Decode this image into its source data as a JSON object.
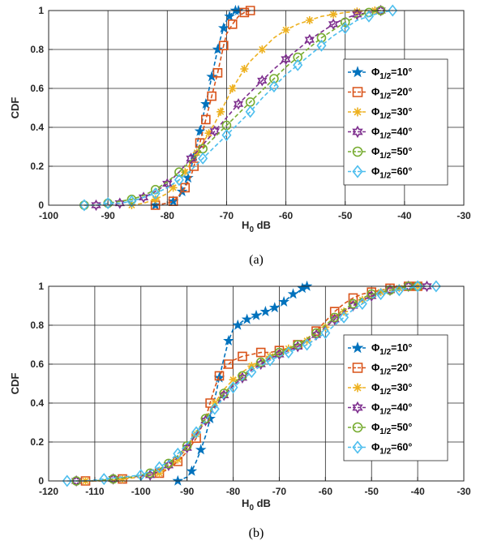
{
  "panels": [
    {
      "caption": "(a)",
      "chart_data": {
        "type": "line",
        "xlabel": "H_0 dB",
        "ylabel": "CDF",
        "xlim": [
          -100,
          -30
        ],
        "ylim": [
          0,
          1
        ],
        "xticks": [
          -100,
          -90,
          -80,
          -70,
          -60,
          -50,
          -40,
          -30
        ],
        "yticks": [
          0,
          0.2,
          0.4,
          0.6,
          0.8,
          1
        ],
        "grid": true,
        "legend_position": "right",
        "series": [
          {
            "name": "Φ1/2=10°",
            "color": "#0072BD",
            "marker": "star",
            "x": [
              -82,
              -80,
              -79,
              -78,
              -77.5,
              -77,
              -76.5,
              -76,
              -75.5,
              -75,
              -74.5,
              -74,
              -73.5,
              -73,
              -72.5,
              -72,
              -71.5,
              -71,
              -70.5,
              -70,
              -69.5,
              -69,
              -68.5,
              -68
            ],
            "y": [
              0,
              0.01,
              0.02,
              0.04,
              0.07,
              0.1,
              0.14,
              0.19,
              0.25,
              0.31,
              0.38,
              0.45,
              0.52,
              0.59,
              0.66,
              0.73,
              0.8,
              0.86,
              0.91,
              0.95,
              0.97,
              0.99,
              1,
              1
            ]
          },
          {
            "name": "Φ1/2=20°",
            "color": "#D95319",
            "marker": "square",
            "x": [
              -82,
              -80,
              -79,
              -78,
              -77,
              -76,
              -75.5,
              -75,
              -74.5,
              -74,
              -73.5,
              -73,
              -72.5,
              -72,
              -71.5,
              -71,
              -70.5,
              -70,
              -69,
              -68,
              -67,
              -66
            ],
            "y": [
              0,
              0.01,
              0.02,
              0.05,
              0.09,
              0.15,
              0.2,
              0.26,
              0.32,
              0.38,
              0.44,
              0.5,
              0.56,
              0.62,
              0.68,
              0.75,
              0.82,
              0.88,
              0.93,
              0.97,
              0.99,
              1
            ]
          },
          {
            "name": "Φ1/2=30°",
            "color": "#EDB120",
            "marker": "asterisk",
            "x": [
              -86,
              -84,
              -82,
              -80,
              -79,
              -78,
              -77,
              -76,
              -75,
              -74,
              -73,
              -72,
              -71,
              -70,
              -69,
              -68,
              -67,
              -66,
              -64,
              -62,
              -60,
              -58,
              -56,
              -54,
              -52,
              -50,
              -48,
              -46,
              -45
            ],
            "y": [
              0,
              0.01,
              0.03,
              0.06,
              0.09,
              0.13,
              0.17,
              0.22,
              0.27,
              0.32,
              0.37,
              0.42,
              0.48,
              0.54,
              0.6,
              0.65,
              0.7,
              0.74,
              0.8,
              0.86,
              0.9,
              0.93,
              0.95,
              0.97,
              0.98,
              0.99,
              0.995,
              1,
              1
            ]
          },
          {
            "name": "Φ1/2=40°",
            "color": "#7E2F8E",
            "marker": "hexagram",
            "x": [
              -92,
              -90,
              -88,
              -86,
              -84,
              -82,
              -80,
              -78,
              -76,
              -74,
              -72,
              -70,
              -68,
              -66,
              -64,
              -62,
              -60,
              -58,
              -56,
              -54,
              -52,
              -50,
              -48,
              -46,
              -44
            ],
            "y": [
              0,
              0,
              0.01,
              0.02,
              0.04,
              0.07,
              0.11,
              0.17,
              0.24,
              0.31,
              0.38,
              0.45,
              0.52,
              0.58,
              0.64,
              0.7,
              0.75,
              0.8,
              0.85,
              0.89,
              0.93,
              0.96,
              0.98,
              0.99,
              1
            ]
          },
          {
            "name": "Φ1/2=50°",
            "color": "#77AC30",
            "marker": "circle",
            "x": [
              -94,
              -92,
              -90,
              -88,
              -86,
              -84,
              -82,
              -80,
              -78,
              -76,
              -74,
              -72,
              -70,
              -68,
              -66,
              -64,
              -62,
              -60,
              -58,
              -56,
              -54,
              -52,
              -50,
              -48,
              -46,
              -44
            ],
            "y": [
              0,
              0,
              0.01,
              0.02,
              0.03,
              0.05,
              0.08,
              0.12,
              0.17,
              0.23,
              0.29,
              0.35,
              0.41,
              0.47,
              0.53,
              0.59,
              0.65,
              0.71,
              0.76,
              0.81,
              0.86,
              0.9,
              0.94,
              0.97,
              0.99,
              1
            ]
          },
          {
            "name": "Φ1/2=60°",
            "color": "#4DBEEE",
            "marker": "diamond",
            "x": [
              -94,
              -92,
              -90,
              -88,
              -86,
              -84,
              -82,
              -80,
              -78,
              -76,
              -74,
              -72,
              -70,
              -68,
              -66,
              -64,
              -62,
              -60,
              -58,
              -56,
              -54,
              -52,
              -50,
              -48,
              -46,
              -44,
              -42
            ],
            "y": [
              0,
              0,
              0.01,
              0.01,
              0.02,
              0.04,
              0.06,
              0.09,
              0.13,
              0.18,
              0.24,
              0.3,
              0.36,
              0.42,
              0.48,
              0.55,
              0.61,
              0.67,
              0.72,
              0.77,
              0.82,
              0.87,
              0.91,
              0.95,
              0.97,
              0.99,
              1
            ]
          }
        ]
      }
    },
    {
      "caption": "(b)",
      "chart_data": {
        "type": "line",
        "xlabel": "H_0 dB",
        "ylabel": "CDF",
        "xlim": [
          -120,
          -30
        ],
        "ylim": [
          0,
          1
        ],
        "xticks": [
          -120,
          -110,
          -100,
          -90,
          -80,
          -70,
          -60,
          -50,
          -40,
          -30
        ],
        "yticks": [
          0,
          0.2,
          0.4,
          0.6,
          0.8,
          1
        ],
        "grid": true,
        "legend_position": "right",
        "series": [
          {
            "name": "Φ1/2=10°",
            "color": "#0072BD",
            "marker": "star",
            "x": [
              -92,
              -90,
              -89,
              -88,
              -87,
              -86,
              -85,
              -84,
              -83,
              -82,
              -81,
              -80,
              -79,
              -78,
              -77,
              -76,
              -75,
              -74,
              -73,
              -72,
              -71,
              -70,
              -69,
              -68,
              -67,
              -66,
              -65,
              -64
            ],
            "y": [
              0,
              0.02,
              0.05,
              0.1,
              0.16,
              0.23,
              0.32,
              0.42,
              0.53,
              0.63,
              0.72,
              0.78,
              0.8,
              0.82,
              0.83,
              0.84,
              0.85,
              0.86,
              0.87,
              0.88,
              0.89,
              0.9,
              0.92,
              0.94,
              0.96,
              0.97,
              0.99,
              1
            ]
          },
          {
            "name": "Φ1/2=20°",
            "color": "#D95319",
            "marker": "square",
            "x": [
              -112,
              -108,
              -104,
              -100,
              -96,
              -94,
              -92,
              -90,
              -88,
              -86,
              -85,
              -84,
              -83,
              -82,
              -81,
              -80,
              -78,
              -76,
              -74,
              -72,
              -70,
              -68,
              -66,
              -64,
              -62,
              -60,
              -58,
              -56,
              -54,
              -52,
              -50,
              -48,
              -46,
              -44,
              -42,
              -40
            ],
            "y": [
              0,
              0,
              0.01,
              0.02,
              0.04,
              0.06,
              0.1,
              0.15,
              0.22,
              0.32,
              0.4,
              0.48,
              0.54,
              0.58,
              0.6,
              0.62,
              0.64,
              0.65,
              0.66,
              0.66,
              0.67,
              0.68,
              0.7,
              0.73,
              0.77,
              0.82,
              0.87,
              0.91,
              0.94,
              0.96,
              0.97,
              0.98,
              0.99,
              1,
              1,
              1
            ]
          },
          {
            "name": "Φ1/2=30°",
            "color": "#EDB120",
            "marker": "asterisk",
            "x": [
              -112,
              -108,
              -104,
              -100,
              -96,
              -94,
              -92,
              -90,
              -88,
              -86,
              -84,
              -82,
              -80,
              -78,
              -76,
              -74,
              -72,
              -70,
              -68,
              -66,
              -64,
              -62,
              -60,
              -58,
              -56,
              -54,
              -52,
              -50,
              -48,
              -46,
              -44,
              -42,
              -40
            ],
            "y": [
              0,
              0,
              0.01,
              0.02,
              0.04,
              0.07,
              0.11,
              0.17,
              0.24,
              0.32,
              0.4,
              0.47,
              0.52,
              0.56,
              0.59,
              0.62,
              0.64,
              0.66,
              0.68,
              0.7,
              0.72,
              0.75,
              0.79,
              0.83,
              0.87,
              0.9,
              0.93,
              0.95,
              0.97,
              0.98,
              0.99,
              1,
              1
            ]
          },
          {
            "name": "Φ1/2=40°",
            "color": "#7E2F8E",
            "marker": "hexagram",
            "x": [
              -114,
              -110,
              -106,
              -102,
              -98,
              -96,
              -94,
              -92,
              -90,
              -88,
              -86,
              -84,
              -82,
              -80,
              -78,
              -76,
              -74,
              -72,
              -70,
              -68,
              -66,
              -64,
              -62,
              -60,
              -58,
              -56,
              -54,
              -52,
              -50,
              -48,
              -46,
              -44,
              -42,
              -40,
              -38
            ],
            "y": [
              0,
              0,
              0.01,
              0.02,
              0.03,
              0.05,
              0.08,
              0.12,
              0.17,
              0.24,
              0.31,
              0.38,
              0.44,
              0.49,
              0.53,
              0.57,
              0.6,
              0.63,
              0.65,
              0.67,
              0.69,
              0.72,
              0.75,
              0.79,
              0.83,
              0.87,
              0.9,
              0.93,
              0.95,
              0.97,
              0.98,
              0.99,
              1,
              1,
              1
            ]
          },
          {
            "name": "Φ1/2=50°",
            "color": "#77AC30",
            "marker": "circle",
            "x": [
              -114,
              -110,
              -106,
              -102,
              -98,
              -96,
              -94,
              -92,
              -90,
              -88,
              -86,
              -84,
              -82,
              -80,
              -78,
              -76,
              -74,
              -72,
              -70,
              -68,
              -66,
              -64,
              -62,
              -60,
              -58,
              -56,
              -54,
              -52,
              -50,
              -48,
              -46,
              -44,
              -42,
              -40
            ],
            "y": [
              0,
              0,
              0.01,
              0.02,
              0.04,
              0.06,
              0.09,
              0.13,
              0.18,
              0.25,
              0.32,
              0.39,
              0.45,
              0.5,
              0.54,
              0.58,
              0.61,
              0.64,
              0.66,
              0.68,
              0.7,
              0.73,
              0.76,
              0.8,
              0.84,
              0.88,
              0.91,
              0.94,
              0.96,
              0.97,
              0.98,
              0.99,
              1,
              1
            ]
          },
          {
            "name": "Φ1/2=60°",
            "color": "#4DBEEE",
            "marker": "diamond",
            "x": [
              -116,
              -112,
              -108,
              -104,
              -100,
              -98,
              -96,
              -94,
              -92,
              -90,
              -88,
              -86,
              -84,
              -82,
              -80,
              -78,
              -76,
              -74,
              -72,
              -70,
              -68,
              -66,
              -64,
              -62,
              -60,
              -58,
              -56,
              -54,
              -52,
              -50,
              -48,
              -46,
              -44,
              -42,
              -40,
              -38,
              -36
            ],
            "y": [
              0,
              0,
              0.01,
              0.02,
              0.03,
              0.05,
              0.07,
              0.1,
              0.14,
              0.19,
              0.25,
              0.31,
              0.37,
              0.43,
              0.48,
              0.52,
              0.56,
              0.59,
              0.62,
              0.64,
              0.66,
              0.68,
              0.7,
              0.73,
              0.76,
              0.8,
              0.84,
              0.88,
              0.91,
              0.94,
              0.96,
              0.97,
              0.98,
              0.99,
              1,
              1,
              1
            ]
          }
        ]
      }
    }
  ]
}
